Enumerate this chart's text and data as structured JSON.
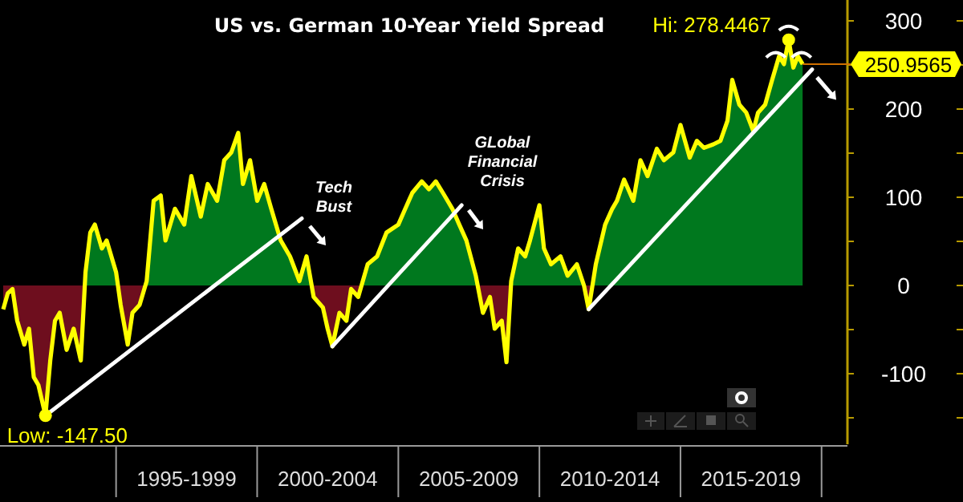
{
  "chart_data": {
    "type": "area",
    "title": "US vs. German 10-Year Yield Spread",
    "xlim": [
      "1991-01",
      "2020-12"
    ],
    "ylim": [
      -180,
      320
    ],
    "xticks": [
      {
        "value": "1995",
        "label": null
      },
      {
        "value": "1997-07",
        "label": "1995-1999"
      },
      {
        "value": "2000",
        "label": null
      },
      {
        "value": "2002-07",
        "label": "2000-2004"
      },
      {
        "value": "2005",
        "label": null
      },
      {
        "value": "2007-07",
        "label": "2005-2009"
      },
      {
        "value": "2010",
        "label": null
      },
      {
        "value": "2012-07",
        "label": "2010-2014"
      },
      {
        "value": "2015",
        "label": null
      },
      {
        "value": "2017-07",
        "label": "2015-2019"
      },
      {
        "value": "2020",
        "label": null
      }
    ],
    "yticks": [
      {
        "value": -150,
        "label": null
      },
      -100,
      {
        "value": -50,
        "label": null
      },
      0,
      {
        "value": 50,
        "label": null
      },
      100,
      {
        "value": 150,
        "label": null
      },
      200,
      {
        "value": 250,
        "label": null
      },
      300
    ],
    "grid": false,
    "series": [
      {
        "color": "#ffff00",
        "x": [
          "1991-01",
          "1991-03",
          "1991-05",
          "1991-07",
          "1991-10",
          "1991-12",
          "1992-02",
          "1992-04",
          "1992-07",
          "1992-09",
          "1992-11",
          "1993-01",
          "1993-04",
          "1993-07",
          "1993-10",
          "1993-12",
          "1994-02",
          "1994-04",
          "1994-07",
          "1994-09",
          "1995-01",
          "1995-03",
          "1995-06",
          "1995-08",
          "1995-11",
          "1996-02",
          "1996-05",
          "1996-08",
          "1996-10",
          "1997-02",
          "1997-06",
          "1997-09",
          "1998-01",
          "1998-04",
          "1998-08",
          "1998-11",
          "1999-02",
          "1999-05",
          "1999-07",
          "1999-10",
          "2000-01",
          "2000-04",
          "2000-07",
          "2000-11",
          "2001-03",
          "2001-07",
          "2001-10",
          "2002-01",
          "2002-05",
          "2002-07",
          "2002-09",
          "2002-12",
          "2003-03",
          "2003-05",
          "2003-08",
          "2003-12",
          "2004-04",
          "2004-08",
          "2005-01",
          "2005-04",
          "2005-07",
          "2005-11",
          "2006-02",
          "2006-05",
          "2006-08",
          "2006-12",
          "2007-03",
          "2007-06",
          "2007-10",
          "2008-01",
          "2008-04",
          "2008-06",
          "2008-09",
          "2008-11",
          "2009-01",
          "2009-04",
          "2009-07",
          "2009-09",
          "2010-01",
          "2010-03",
          "2010-06",
          "2010-10",
          "2011-01",
          "2011-05",
          "2011-08",
          "2011-10",
          "2012-01",
          "2012-05",
          "2012-08",
          "2012-10",
          "2013-01",
          "2013-05",
          "2013-08",
          "2013-11",
          "2014-03",
          "2014-06",
          "2014-10",
          "2015-01",
          "2015-05",
          "2015-08",
          "2015-11",
          "2016-03",
          "2016-06",
          "2016-09",
          "2016-11",
          "2017-02",
          "2017-05",
          "2017-08",
          "2017-10",
          "2018-01",
          "2018-04",
          "2018-07",
          "2018-09",
          "2018-11",
          "2019-01",
          "2019-03",
          "2019-05"
        ],
        "values": [
          -27,
          -9,
          -4,
          -40,
          -67,
          -49,
          -104,
          -113,
          -147.5,
          -85,
          -40,
          -31,
          -73,
          -49,
          -85,
          15,
          60,
          69,
          42,
          51,
          15,
          -22,
          -67,
          -31,
          -22,
          5,
          96,
          102,
          51,
          87,
          69,
          124,
          78,
          115,
          96,
          142,
          151,
          173,
          115,
          142,
          96,
          115,
          87,
          51,
          33,
          5,
          33,
          -13,
          -25,
          -49,
          -69,
          -31,
          -40,
          -4,
          -13,
          24,
          33,
          60,
          69,
          87,
          105,
          118,
          109,
          118,
          105,
          87,
          69,
          51,
          11,
          -31,
          -13,
          -49,
          -40,
          -87,
          5,
          42,
          33,
          51,
          91,
          42,
          24,
          33,
          11,
          24,
          0,
          -27,
          24,
          69,
          87,
          96,
          120,
          96,
          142,
          124,
          155,
          142,
          151,
          182,
          145,
          164,
          156,
          160,
          164,
          187,
          233,
          205,
          196,
          175,
          196,
          205,
          233,
          260,
          251,
          278.4467,
          247,
          260,
          250.9565
        ]
      },
      {
        "type": "line",
        "color": "#ffffff",
        "x": [
          "1992-07",
          "2001-08"
        ],
        "values": [
          -147.5,
          76
        ]
      },
      {
        "type": "line",
        "color": "#ffffff",
        "x": [
          "2002-09",
          "2007-04"
        ],
        "values": [
          -69,
          91
        ]
      },
      {
        "type": "line",
        "color": "#ffffff",
        "x": [
          "2011-10",
          "2019-09"
        ],
        "values": [
          -27,
          245
        ]
      }
    ],
    "annotations": [
      {
        "text": "Hi: 278.4467",
        "x": "2018-11",
        "y": 278.4467
      },
      {
        "text": "Low: -147.50",
        "x": "1992-07",
        "y": -147.5
      },
      {
        "text": "250.9565",
        "x": "2019-05",
        "y": 250.9565
      },
      "Tech Bust",
      "GLobal Financial Crisis"
    ]
  }
}
